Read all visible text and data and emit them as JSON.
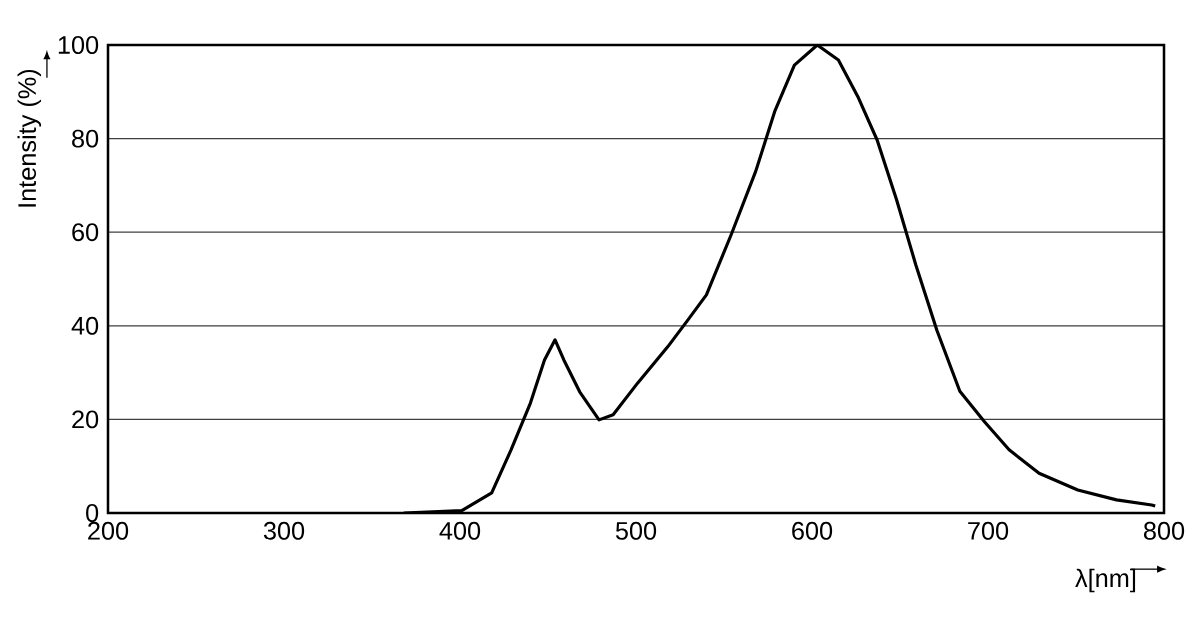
{
  "chart_data": {
    "type": "line",
    "xlabel": "λ[nm]",
    "ylabel": "Intensity (%)",
    "x": [
      368,
      401,
      418,
      429,
      440,
      448,
      454,
      459,
      468,
      479,
      487,
      501,
      518,
      529,
      540,
      554,
      568,
      579,
      590,
      603,
      615,
      626,
      637,
      648,
      659,
      671,
      684,
      698,
      712,
      729,
      751,
      773,
      793,
      795
    ],
    "series": [
      {
        "color": "#000000",
        "values": [
          0,
          0.5,
          4.3,
          13.5,
          23.5,
          32.7,
          37,
          32.7,
          25.9,
          19.9,
          21,
          27.8,
          35.5,
          41,
          46.6,
          59.4,
          73,
          86,
          95.7,
          100,
          96.8,
          89,
          79.7,
          67,
          53,
          39,
          26,
          19.5,
          13.5,
          8.5,
          4.9,
          2.8,
          1.7,
          1.5
        ]
      }
    ],
    "xlim": [
      200,
      800
    ],
    "ylim": [
      0,
      100
    ],
    "xticks": [
      200,
      300,
      400,
      500,
      600,
      700,
      800
    ],
    "yticks": [
      0,
      20,
      40,
      60,
      80,
      100
    ],
    "grid": "y",
    "marker": "none",
    "line_style": "solid"
  }
}
